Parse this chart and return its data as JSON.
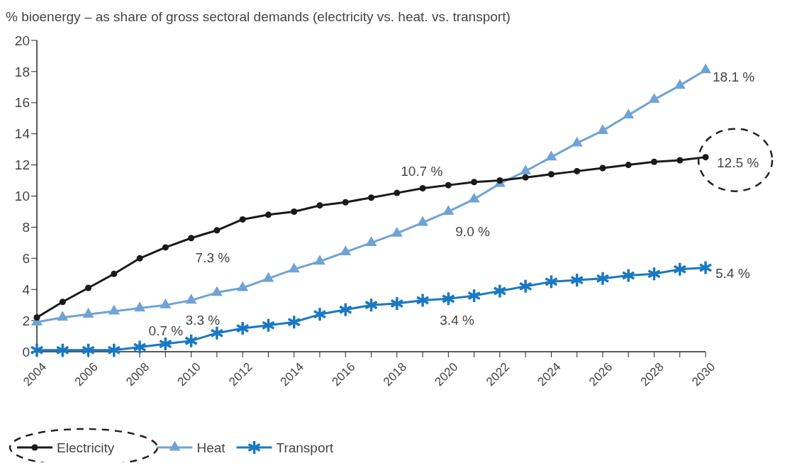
{
  "chart_data": {
    "type": "line",
    "title": "% bioenergy – as share of gross sectoral demands (electricity vs. heat. vs. transport)",
    "x": [
      2004,
      2005,
      2006,
      2007,
      2008,
      2009,
      2010,
      2011,
      2012,
      2013,
      2014,
      2015,
      2016,
      2017,
      2018,
      2019,
      2020,
      2021,
      2022,
      2023,
      2024,
      2025,
      2026,
      2027,
      2028,
      2029,
      2030
    ],
    "series": [
      {
        "name": "Electricity",
        "color": "#1a1a1a",
        "marker": "circle",
        "values": [
          2.2,
          3.2,
          4.1,
          5.0,
          6.0,
          6.7,
          7.3,
          7.8,
          8.5,
          8.8,
          9.0,
          9.4,
          9.6,
          9.9,
          10.2,
          10.5,
          10.7,
          10.9,
          11.0,
          11.2,
          11.4,
          11.6,
          11.8,
          12.0,
          12.2,
          12.3,
          12.5
        ]
      },
      {
        "name": "Heat",
        "color": "#6fa3d6",
        "marker": "triangle",
        "values": [
          1.9,
          2.2,
          2.4,
          2.6,
          2.8,
          3.0,
          3.3,
          3.8,
          4.1,
          4.7,
          5.3,
          5.8,
          6.4,
          7.0,
          7.6,
          8.3,
          9.0,
          9.8,
          10.8,
          11.6,
          12.5,
          13.4,
          14.2,
          15.2,
          16.2,
          17.1,
          18.1
        ]
      },
      {
        "name": "Transport",
        "color": "#1a78c2",
        "marker": "cross",
        "values": [
          0.1,
          0.1,
          0.1,
          0.1,
          0.3,
          0.5,
          0.7,
          1.2,
          1.5,
          1.7,
          1.9,
          2.4,
          2.7,
          3.0,
          3.1,
          3.3,
          3.4,
          3.6,
          3.9,
          4.2,
          4.5,
          4.6,
          4.7,
          4.9,
          5.0,
          5.3,
          5.4
        ]
      }
    ],
    "xlim": [
      2004,
      2030
    ],
    "xticks": [
      2004,
      {
        "value": 2005,
        "label": null
      },
      2006,
      {
        "value": 2007,
        "label": null
      },
      2008,
      {
        "value": 2009,
        "label": null
      },
      2010,
      {
        "value": 2011,
        "label": null
      },
      2012,
      {
        "value": 2013,
        "label": null
      },
      2014,
      {
        "value": 2015,
        "label": null
      },
      2016,
      {
        "value": 2017,
        "label": null
      },
      2018,
      {
        "value": 2019,
        "label": null
      },
      2020,
      {
        "value": 2021,
        "label": null
      },
      2022,
      {
        "value": 2023,
        "label": null
      },
      2024,
      {
        "value": 2025,
        "label": null
      },
      2026,
      {
        "value": 2027,
        "label": null
      },
      2028,
      {
        "value": 2029,
        "label": null
      },
      2030
    ],
    "ylim": [
      0,
      20
    ],
    "yticks": [
      0,
      2,
      4,
      6,
      8,
      10,
      12,
      14,
      16,
      18,
      20
    ],
    "annotations": [
      {
        "text": "7.3 %",
        "x": 2010,
        "y": 7.3
      },
      {
        "text": "3.3 %",
        "x": 2010,
        "y": 3.3
      },
      {
        "text": "0.7 %",
        "x": 2010,
        "y": 0.7
      },
      {
        "text": "10.7 %",
        "x": 2020,
        "y": 10.7
      },
      {
        "text": "9.0 %",
        "x": 2020,
        "y": 9.0
      },
      {
        "text": "3.4 %",
        "x": 2020,
        "y": 3.4
      },
      {
        "text": "18.1 %",
        "x": 2030,
        "y": 18.1
      },
      {
        "text": "12.5 %",
        "x": 2030,
        "y": 12.5
      },
      {
        "text": "5.4 %",
        "x": 2030,
        "y": 5.4
      }
    ],
    "legend": "bottom left",
    "grid": false
  }
}
